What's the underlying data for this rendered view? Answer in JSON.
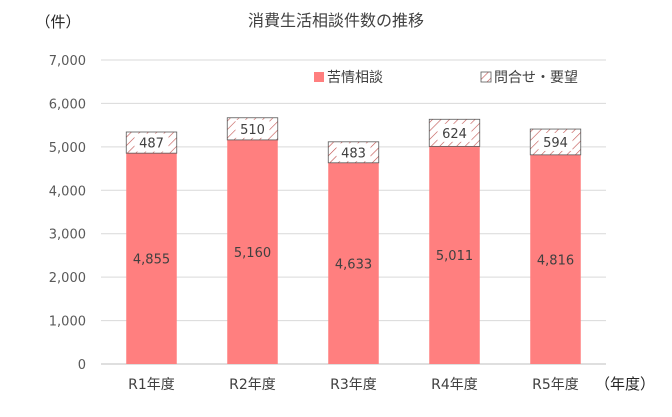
{
  "chart_data": {
    "type": "bar",
    "stacked": true,
    "title": "消費生活相談件数の推移",
    "ylabel": "（件）",
    "xlabel": "（年度）",
    "categories": [
      "R1年度",
      "R2年度",
      "R3年度",
      "R4年度",
      "R5年度"
    ],
    "series": [
      {
        "name": "苦情相談",
        "values": [
          4855,
          5160,
          4633,
          5011,
          4816
        ],
        "labels": [
          "4,855",
          "5,160",
          "4,633",
          "5,011",
          "4,816"
        ],
        "color": "#FF7F7F"
      },
      {
        "name": "問合せ・要望",
        "values": [
          487,
          510,
          483,
          624,
          594
        ],
        "labels": [
          "487",
          "510",
          "483",
          "624",
          "594"
        ],
        "color": "#FFFFFF",
        "pattern": "diagonal-hatch",
        "hatch_color": "#C0504D"
      }
    ],
    "ylim": [
      0,
      7000
    ],
    "yticks": [
      0,
      1000,
      2000,
      3000,
      4000,
      5000,
      6000,
      7000
    ],
    "ytick_labels": [
      "0",
      "1,000",
      "2,000",
      "3,000",
      "4,000",
      "5,000",
      "6,000",
      "7,000"
    ],
    "grid": true,
    "legend_position": "top-right"
  }
}
